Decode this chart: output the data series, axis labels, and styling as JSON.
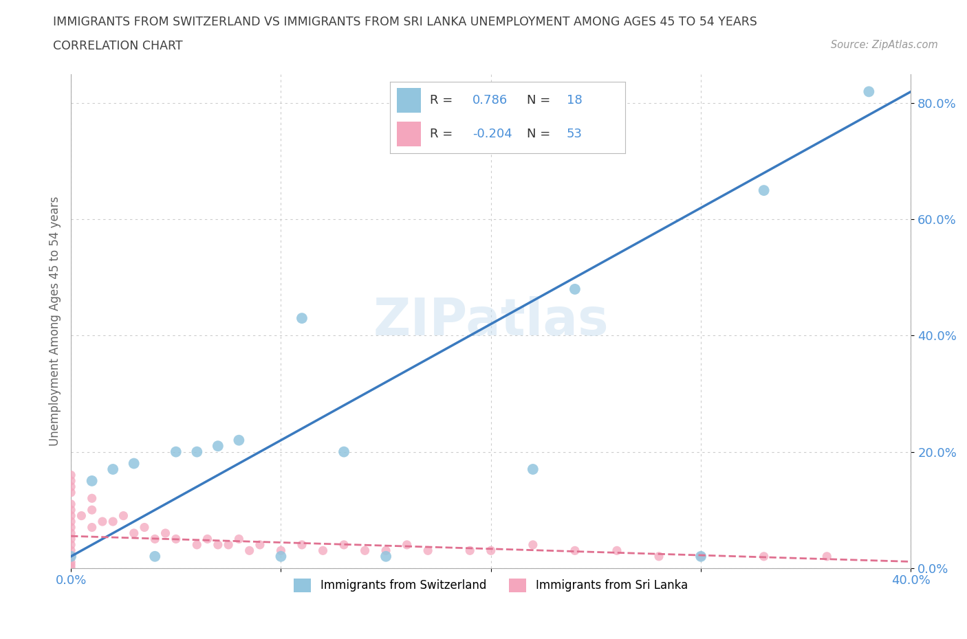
{
  "title_line1": "IMMIGRANTS FROM SWITZERLAND VS IMMIGRANTS FROM SRI LANKA UNEMPLOYMENT AMONG AGES 45 TO 54 YEARS",
  "title_line2": "CORRELATION CHART",
  "source_text": "Source: ZipAtlas.com",
  "xlabel": "",
  "ylabel": "Unemployment Among Ages 45 to 54 years",
  "watermark": "ZIPatlas",
  "xlim": [
    0.0,
    0.4
  ],
  "ylim": [
    0.0,
    0.85
  ],
  "xticks": [
    0.0,
    0.1,
    0.2,
    0.3,
    0.4
  ],
  "xtick_labels": [
    "0.0%",
    "",
    "",
    "",
    "40.0%"
  ],
  "ytick_labels": [
    "0.0%",
    "20.0%",
    "40.0%",
    "60.0%",
    "80.0%"
  ],
  "yticks": [
    0.0,
    0.2,
    0.4,
    0.6,
    0.8
  ],
  "switzerland_color": "#92c5de",
  "srilanka_color": "#f4a6bd",
  "switzerland_line_color": "#3a7abf",
  "srilanka_line_color": "#e07090",
  "R_switzerland": 0.786,
  "N_switzerland": 18,
  "R_srilanka": -0.204,
  "N_srilanka": 53,
  "legend_label_switzerland": "Immigrants from Switzerland",
  "legend_label_srilanka": "Immigrants from Sri Lanka",
  "switzerland_points_x": [
    0.0,
    0.01,
    0.02,
    0.03,
    0.04,
    0.05,
    0.06,
    0.07,
    0.08,
    0.1,
    0.11,
    0.13,
    0.15,
    0.22,
    0.24,
    0.3,
    0.33,
    0.38
  ],
  "switzerland_points_y": [
    0.02,
    0.15,
    0.17,
    0.18,
    0.02,
    0.2,
    0.2,
    0.21,
    0.22,
    0.02,
    0.43,
    0.2,
    0.02,
    0.17,
    0.48,
    0.02,
    0.65,
    0.82
  ],
  "srilanka_points_x": [
    0.0,
    0.0,
    0.0,
    0.0,
    0.0,
    0.0,
    0.0,
    0.0,
    0.0,
    0.0,
    0.0,
    0.0,
    0.0,
    0.0,
    0.0,
    0.0,
    0.0,
    0.005,
    0.01,
    0.01,
    0.01,
    0.015,
    0.02,
    0.025,
    0.03,
    0.035,
    0.04,
    0.045,
    0.05,
    0.06,
    0.065,
    0.07,
    0.075,
    0.08,
    0.085,
    0.09,
    0.1,
    0.11,
    0.12,
    0.13,
    0.14,
    0.15,
    0.16,
    0.17,
    0.19,
    0.2,
    0.22,
    0.24,
    0.26,
    0.28,
    0.3,
    0.33,
    0.36
  ],
  "srilanka_points_y": [
    0.0,
    0.005,
    0.01,
    0.02,
    0.03,
    0.04,
    0.05,
    0.06,
    0.07,
    0.08,
    0.09,
    0.1,
    0.11,
    0.13,
    0.14,
    0.15,
    0.16,
    0.09,
    0.1,
    0.12,
    0.07,
    0.08,
    0.08,
    0.09,
    0.06,
    0.07,
    0.05,
    0.06,
    0.05,
    0.04,
    0.05,
    0.04,
    0.04,
    0.05,
    0.03,
    0.04,
    0.03,
    0.04,
    0.03,
    0.04,
    0.03,
    0.03,
    0.04,
    0.03,
    0.03,
    0.03,
    0.04,
    0.03,
    0.03,
    0.02,
    0.02,
    0.02,
    0.02
  ],
  "grid_color": "#cccccc",
  "background_color": "#ffffff",
  "title_color": "#404040",
  "axis_label_color": "#666666",
  "tick_color_blue": "#4a90d9",
  "stats_box_sw_line": "R =  0.786   N = 18",
  "stats_box_sl_line": "R = -0.204   N = 53"
}
